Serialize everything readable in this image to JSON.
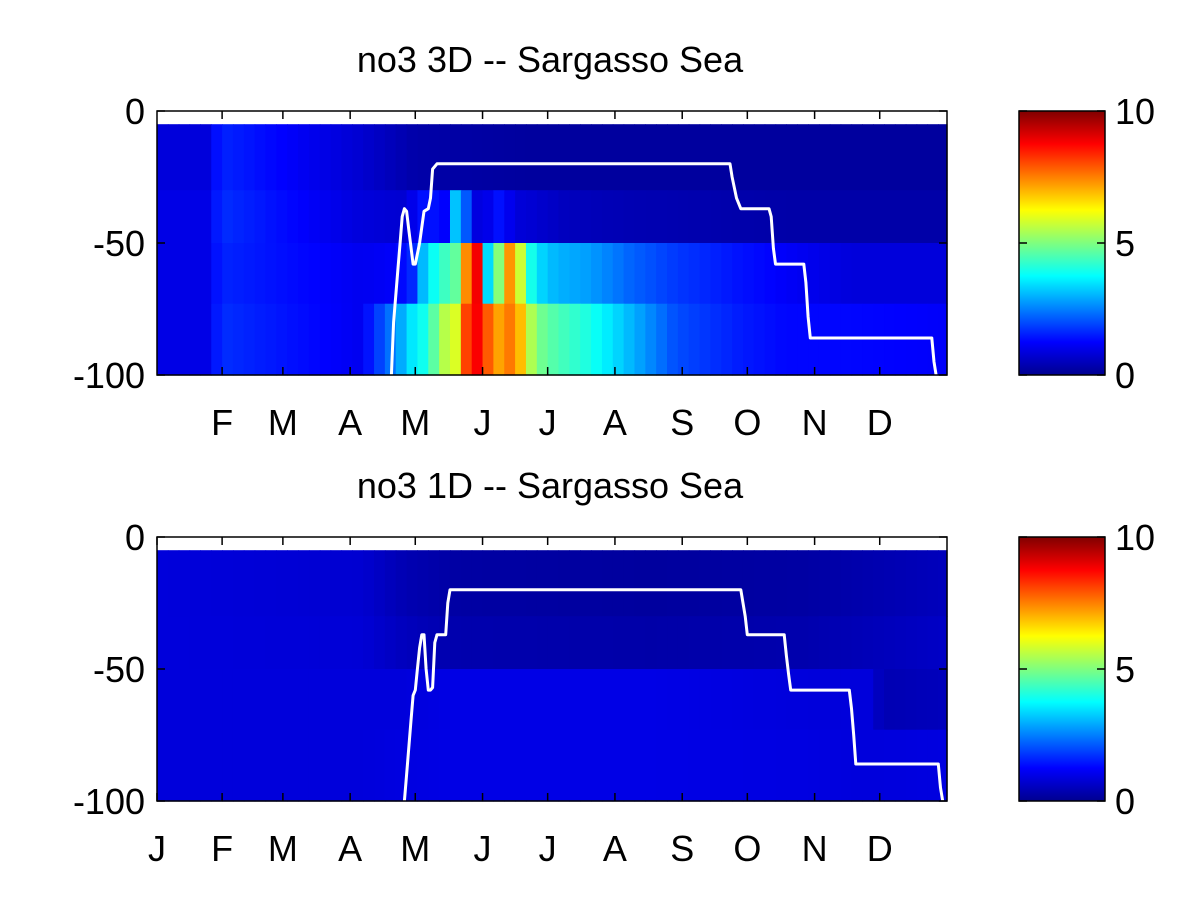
{
  "chart_data": [
    {
      "type": "heatmap",
      "title": "no3 3D   -- Sargasso Sea",
      "ylim": [
        -100,
        0
      ],
      "yticks": [
        "0",
        "-50",
        "-100"
      ],
      "xticks": [
        "F",
        "M",
        "A",
        "M",
        "J",
        "J",
        "A",
        "S",
        "O",
        "N",
        "D"
      ],
      "xtick_days": [
        31,
        59,
        90,
        120,
        151,
        181,
        212,
        243,
        273,
        304,
        334
      ],
      "xlim": [
        1,
        365
      ],
      "colorbar": {
        "min": 0,
        "max": 10,
        "ticks": [
          "0",
          "5",
          "10"
        ],
        "colormap": "jet"
      },
      "depth_layers": [
        [
          -5,
          -30
        ],
        [
          -30,
          -50
        ],
        [
          -50,
          -73
        ],
        [
          -73,
          -100
        ]
      ],
      "depth_shown_from": -5,
      "values_by_layer": [
        {
          "x": [
            1,
            25,
            30,
            95,
            120,
            175,
            220,
            290,
            365
          ],
          "v": [
            0.9,
            0.9,
            1.6,
            0.8,
            0.4,
            0.3,
            0.3,
            0.3,
            0.3
          ]
        },
        {
          "x": [
            1,
            25,
            30,
            95,
            115,
            125,
            135,
            140,
            145,
            150,
            160,
            165,
            175,
            190,
            220,
            290,
            365
          ],
          "v": [
            1.0,
            1.0,
            1.7,
            0.9,
            0.8,
            1.5,
            1.2,
            4.0,
            1.3,
            0.8,
            1.5,
            0.9,
            0.8,
            0.6,
            0.5,
            0.4,
            0.4
          ]
        },
        {
          "x": [
            1,
            25,
            30,
            95,
            110,
            118,
            125,
            135,
            140,
            145,
            150,
            155,
            160,
            165,
            170,
            175,
            185,
            200,
            220,
            240,
            270,
            290,
            320,
            365
          ],
          "v": [
            1.0,
            1.0,
            1.6,
            1.1,
            1.2,
            1.5,
            3.5,
            4.5,
            4.8,
            8.5,
            9.0,
            1.0,
            6.8,
            7.5,
            5.0,
            3.5,
            3.0,
            2.8,
            2.2,
            1.8,
            1.4,
            1.2,
            0.9,
            0.9
          ]
        },
        {
          "x": [
            1,
            25,
            30,
            95,
            110,
            118,
            125,
            133,
            140,
            145,
            150,
            155,
            160,
            165,
            170,
            175,
            185,
            200,
            220,
            240,
            270,
            290,
            320,
            365
          ],
          "v": [
            1.0,
            1.0,
            1.7,
            1.1,
            2.5,
            3.5,
            4.0,
            5.5,
            6.0,
            9.0,
            8.7,
            7.5,
            7.0,
            7.8,
            6.5,
            5.0,
            4.5,
            4.0,
            3.0,
            2.0,
            1.5,
            1.3,
            1.3,
            1.2
          ]
        }
      ],
      "mixed_layer_depth": {
        "x": [
          109,
          110,
          112,
          113,
          114,
          115,
          116,
          117,
          119,
          120,
          122,
          124,
          126,
          127,
          128,
          130,
          131,
          265,
          266,
          268,
          270,
          283,
          284,
          285,
          286,
          299,
          300,
          301,
          302,
          315,
          316,
          317,
          318,
          358,
          359,
          360
        ],
        "y": [
          -100,
          -80,
          -60,
          -50,
          -40,
          -37,
          -38,
          -45,
          -58,
          -58,
          -50,
          -38,
          -37,
          -33,
          -22,
          -20,
          -20,
          -20,
          -25,
          -33,
          -37,
          -37,
          -40,
          -52,
          -58,
          -58,
          -65,
          -78,
          -86,
          -86,
          -86,
          -86,
          -86,
          -86,
          -95,
          -100
        ]
      }
    },
    {
      "type": "heatmap",
      "title": "no3 1D   -- Sargasso Sea",
      "ylim": [
        -100,
        0
      ],
      "yticks": [
        "0",
        "-50",
        "-100"
      ],
      "xticks": [
        "J",
        "F",
        "M",
        "A",
        "M",
        "J",
        "J",
        "A",
        "S",
        "O",
        "N",
        "D"
      ],
      "xtick_days": [
        1,
        31,
        59,
        90,
        120,
        151,
        181,
        212,
        243,
        273,
        304,
        334
      ],
      "xlim": [
        1,
        365
      ],
      "colorbar": {
        "min": 0,
        "max": 10,
        "ticks": [
          "0",
          "5",
          "10"
        ],
        "colormap": "jet"
      },
      "depth_layers": [
        [
          -5,
          -30
        ],
        [
          -30,
          -50
        ],
        [
          -50,
          -73
        ],
        [
          -73,
          -100
        ]
      ],
      "depth_shown_from": -5,
      "values_by_layer": [
        {
          "x": [
            1,
            95,
            115,
            140,
            230,
            300,
            340,
            365
          ],
          "v": [
            0.9,
            0.8,
            0.5,
            0.35,
            0.3,
            0.35,
            0.5,
            0.6
          ]
        },
        {
          "x": [
            1,
            95,
            115,
            140,
            230,
            300,
            340,
            365
          ],
          "v": [
            0.9,
            0.85,
            0.6,
            0.45,
            0.4,
            0.45,
            0.6,
            0.7
          ]
        },
        {
          "x": [
            1,
            95,
            115,
            140,
            230,
            300,
            330,
            335,
            365
          ],
          "v": [
            0.9,
            0.9,
            0.9,
            1.0,
            1.0,
            0.9,
            0.9,
            0.5,
            0.6
          ]
        },
        {
          "x": [
            1,
            95,
            115,
            140,
            230,
            300,
            330,
            365
          ],
          "v": [
            0.9,
            0.9,
            0.95,
            1.0,
            1.0,
            0.95,
            0.9,
            0.95
          ]
        }
      ],
      "mixed_layer_depth": {
        "x": [
          115,
          116,
          118,
          119,
          120,
          121,
          122,
          123,
          124,
          125,
          126,
          127,
          128,
          129,
          130,
          132,
          134,
          135,
          136,
          270,
          271,
          272,
          273,
          274,
          290,
          291,
          292,
          293,
          294,
          320,
          321,
          322,
          323,
          324,
          361,
          362,
          363
        ],
        "y": [
          -100,
          -90,
          -70,
          -60,
          -58,
          -50,
          -42,
          -37,
          -37,
          -50,
          -58,
          -58,
          -57,
          -40,
          -37,
          -37,
          -37,
          -25,
          -20,
          -20,
          -25,
          -30,
          -37,
          -37,
          -37,
          -45,
          -52,
          -58,
          -58,
          -58,
          -65,
          -75,
          -86,
          -86,
          -86,
          -95,
          -100
        ]
      }
    }
  ]
}
